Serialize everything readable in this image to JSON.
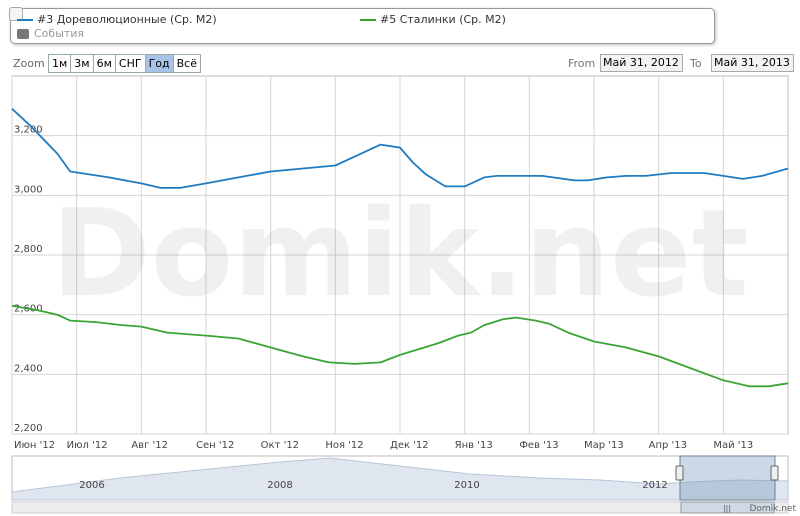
{
  "legend": {
    "series1": "#3 Дореволюционные (Ср. М2)",
    "series2": "#5 Сталинки (Ср. М2)",
    "events": "События"
  },
  "zoom": {
    "label": "Zoom",
    "buttons": [
      "1м",
      "3м",
      "6м",
      "СНГ",
      "Год",
      "Всё"
    ],
    "active_index": 4
  },
  "range": {
    "from_label": "From",
    "from_value": "Май 31, 2012",
    "to_label": "To",
    "to_value": "Май 31, 2013"
  },
  "watermark": "Domik.net",
  "credit": "Domik.net",
  "navigator": {
    "years": [
      "2006",
      "2008",
      "2010",
      "2012"
    ]
  },
  "colors": {
    "series1": "#1f7bbf",
    "series2": "#3aa534",
    "events": "#777777"
  },
  "chart_data": {
    "type": "line",
    "x_labels": [
      "Июн '12",
      "Июл '12",
      "Авг '12",
      "Сен '12",
      "Окт '12",
      "Ноя '12",
      "Дек '12",
      "Янв '13",
      "Фев '13",
      "Мар '13",
      "Апр '13",
      "Май '13"
    ],
    "xlim": [
      0,
      12
    ],
    "ylim": [
      2200,
      3400
    ],
    "y_ticks": [
      2200,
      2400,
      2600,
      2800,
      3000,
      3200
    ],
    "grid": true,
    "series": [
      {
        "name": "#3 Дореволюционные (Ср. М2)",
        "color": "#1f7bbf",
        "x": [
          0.0,
          0.3,
          0.7,
          0.9,
          1.5,
          2.0,
          2.3,
          2.6,
          3.0,
          3.5,
          4.0,
          4.5,
          5.0,
          5.3,
          5.7,
          6.0,
          6.2,
          6.4,
          6.7,
          7.0,
          7.3,
          7.5,
          7.8,
          8.2,
          8.7,
          8.9,
          9.2,
          9.5,
          9.8,
          10.2,
          10.7,
          11.0,
          11.3,
          11.6,
          12.0
        ],
        "values": [
          3290,
          3230,
          3140,
          3080,
          3060,
          3040,
          3025,
          3025,
          3040,
          3060,
          3080,
          3090,
          3100,
          3130,
          3170,
          3160,
          3110,
          3070,
          3030,
          3030,
          3060,
          3065,
          3065,
          3065,
          3050,
          3050,
          3060,
          3065,
          3065,
          3075,
          3075,
          3065,
          3055,
          3065,
          3090
        ]
      },
      {
        "name": "#5 Сталинки (Ср. М2)",
        "color": "#3aa534",
        "x": [
          0.0,
          0.4,
          0.7,
          0.9,
          1.3,
          1.7,
          2.0,
          2.4,
          3.0,
          3.5,
          4.0,
          4.5,
          4.9,
          5.3,
          5.7,
          6.0,
          6.3,
          6.6,
          6.9,
          7.1,
          7.3,
          7.6,
          7.8,
          8.1,
          8.3,
          8.6,
          9.0,
          9.5,
          10.0,
          10.5,
          11.0,
          11.4,
          11.7,
          12.0
        ],
        "values": [
          2630,
          2615,
          2600,
          2580,
          2575,
          2565,
          2560,
          2540,
          2530,
          2520,
          2490,
          2460,
          2440,
          2435,
          2440,
          2465,
          2485,
          2505,
          2530,
          2540,
          2565,
          2585,
          2590,
          2580,
          2570,
          2540,
          2510,
          2490,
          2460,
          2420,
          2380,
          2360,
          2360,
          2370
        ]
      }
    ]
  }
}
